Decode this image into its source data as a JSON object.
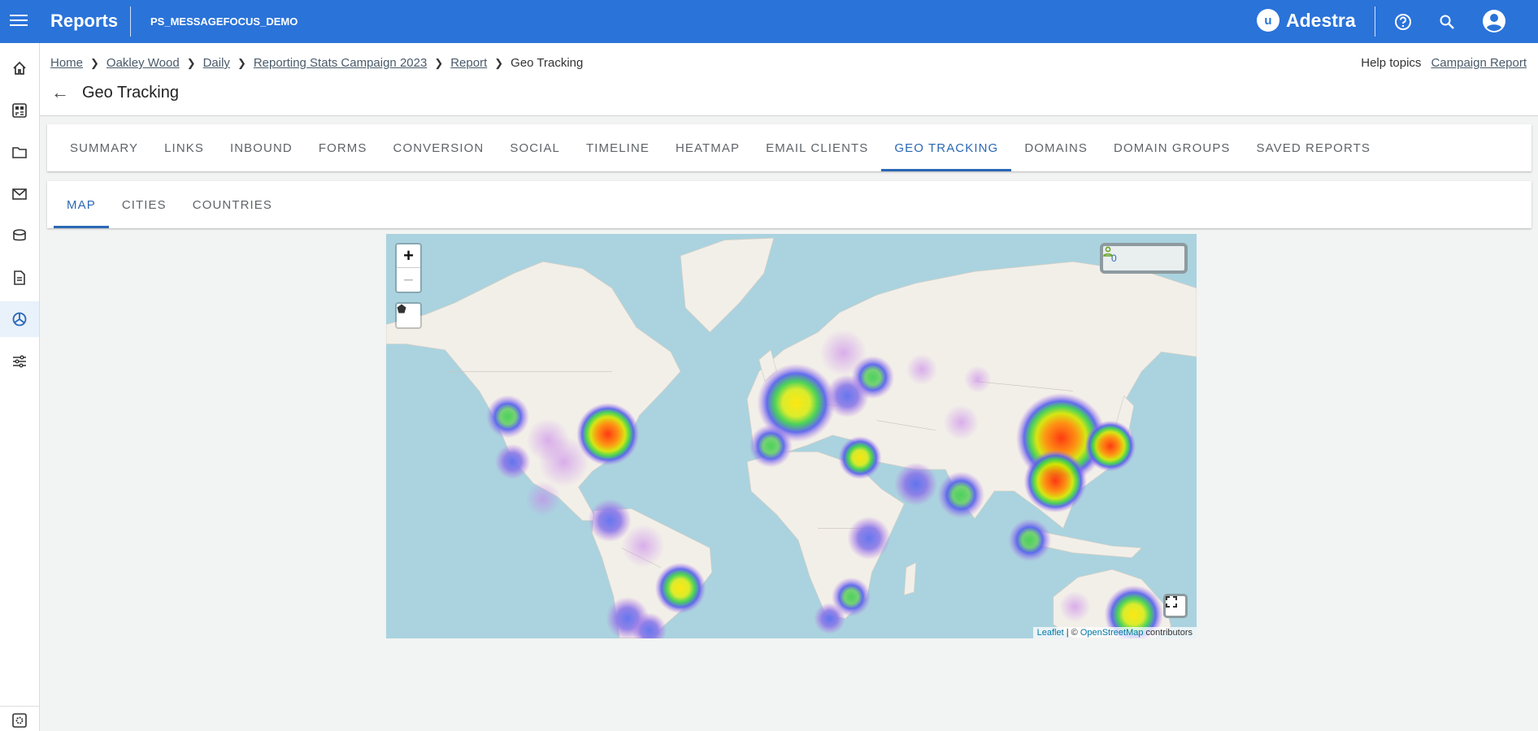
{
  "header": {
    "app_title": "Reports",
    "account": "PS_MESSAGEFOCUS_DEMO",
    "brand": "Adestra",
    "brand_logo_letter": "u",
    "color": "#2a73d9"
  },
  "sidebar": {
    "items": [
      {
        "icon": "home-icon"
      },
      {
        "icon": "dashboard-icon"
      },
      {
        "icon": "folder-icon"
      },
      {
        "icon": "mail-icon"
      },
      {
        "icon": "database-icon"
      },
      {
        "icon": "document-icon"
      },
      {
        "icon": "reports-pie-icon",
        "active": true
      },
      {
        "icon": "sliders-icon"
      }
    ],
    "bottom_icon": "settings-icon"
  },
  "breadcrumb": [
    {
      "label": "Home",
      "link": true
    },
    {
      "label": "Oakley Wood",
      "link": true
    },
    {
      "label": "Daily",
      "link": true
    },
    {
      "label": "Reporting Stats Campaign 2023",
      "link": true
    },
    {
      "label": "Report",
      "link": true
    },
    {
      "label": "Geo Tracking",
      "link": false
    }
  ],
  "help": {
    "help_topics": "Help topics",
    "campaign_report": "Campaign Report"
  },
  "page_title": "Geo Tracking",
  "tabs": [
    {
      "label": "Summary"
    },
    {
      "label": "Links"
    },
    {
      "label": "Inbound"
    },
    {
      "label": "Forms"
    },
    {
      "label": "Conversion"
    },
    {
      "label": "Social"
    },
    {
      "label": "Timeline"
    },
    {
      "label": "Heatmap"
    },
    {
      "label": "Email Clients"
    },
    {
      "label": "Geo Tracking",
      "active": true
    },
    {
      "label": "Domains"
    },
    {
      "label": "Domain Groups"
    },
    {
      "label": "Saved Reports"
    }
  ],
  "subtabs": [
    {
      "label": "Map",
      "active": true
    },
    {
      "label": "Cities"
    },
    {
      "label": "Countries"
    }
  ],
  "map": {
    "zoom_in": "+",
    "zoom_out": "−",
    "selected_count": "0",
    "attribution": {
      "leaflet": "Leaflet",
      "sep": " | © ",
      "osm": "OpenStreetMap",
      "suffix": " contributors"
    },
    "colors": {
      "water": "#aad3df",
      "land": "#f2efe9",
      "active_tab": "#2b68b4"
    }
  }
}
